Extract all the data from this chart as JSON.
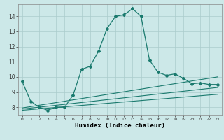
{
  "title": "",
  "xlabel": "Humidex (Indice chaleur)",
  "bg_color": "#cce8e8",
  "grid_color": "#aacccc",
  "line_color": "#1a7a6e",
  "xlim": [
    -0.5,
    23.5
  ],
  "ylim": [
    7.5,
    14.8
  ],
  "xticks": [
    0,
    1,
    2,
    3,
    4,
    5,
    6,
    7,
    8,
    9,
    10,
    11,
    12,
    13,
    14,
    15,
    16,
    17,
    18,
    19,
    20,
    21,
    22,
    23
  ],
  "yticks": [
    8,
    9,
    10,
    11,
    12,
    13,
    14
  ],
  "main_x": [
    0,
    1,
    2,
    3,
    4,
    5,
    6,
    7,
    8,
    9,
    10,
    11,
    12,
    13,
    14,
    15,
    16,
    17,
    18,
    19,
    20,
    21,
    22,
    23
  ],
  "main_y": [
    9.7,
    8.4,
    8.0,
    7.8,
    8.0,
    8.0,
    8.8,
    10.5,
    10.7,
    11.7,
    13.2,
    14.0,
    14.1,
    14.5,
    14.0,
    11.1,
    10.3,
    10.1,
    10.2,
    9.9,
    9.55,
    9.6,
    9.5,
    9.5
  ],
  "line2_x": [
    0,
    23
  ],
  "line2_y": [
    7.95,
    10.0
  ],
  "line3_x": [
    0,
    23
  ],
  "line3_y": [
    7.88,
    9.3
  ],
  "line4_x": [
    0,
    23
  ],
  "line4_y": [
    7.8,
    8.85
  ],
  "marker_x": [
    0,
    1,
    2,
    3,
    4,
    5,
    6,
    7,
    8,
    9,
    10,
    11,
    12,
    13,
    14,
    15,
    16,
    17,
    18,
    19,
    20,
    21,
    22,
    23
  ],
  "marker_y": [
    9.7,
    8.4,
    8.0,
    7.8,
    8.0,
    8.0,
    8.8,
    10.5,
    10.7,
    11.7,
    13.2,
    14.0,
    14.1,
    14.5,
    14.0,
    11.1,
    10.3,
    10.1,
    10.2,
    9.9,
    9.55,
    9.6,
    9.5,
    9.5
  ]
}
